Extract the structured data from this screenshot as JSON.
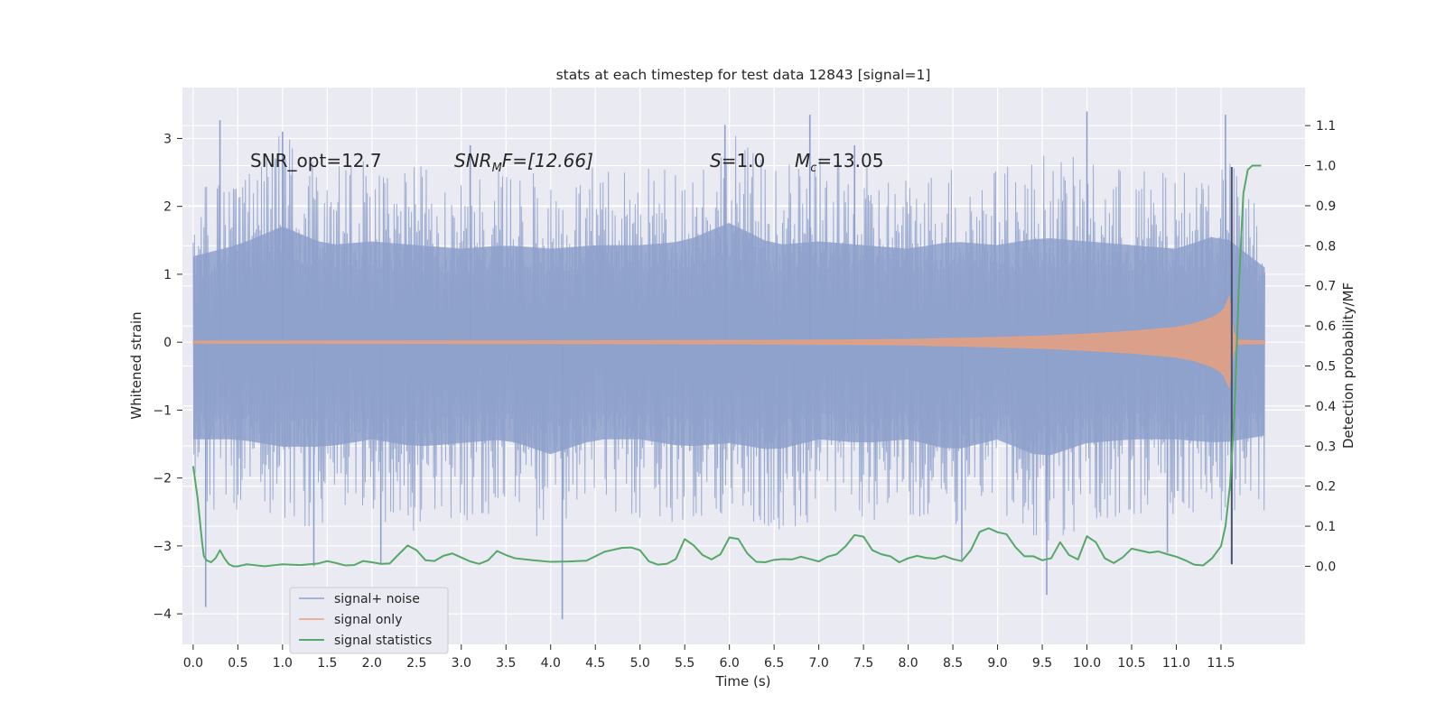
{
  "chart_data": {
    "type": "line",
    "title": "stats at each timestep for test data 12843 [signal=1]",
    "xlabel": "Time (s)",
    "ylabel": "Whitened strain",
    "ylabel_right": "Detection probability/MF",
    "xlim": [
      -0.12,
      12.44
    ],
    "ylim": [
      -4.45,
      3.75
    ],
    "ylim_right": [
      -0.195,
      1.195
    ],
    "xticks": [
      0.0,
      0.5,
      1.0,
      1.5,
      2.0,
      2.5,
      3.0,
      3.5,
      4.0,
      4.5,
      5.0,
      5.5,
      6.0,
      6.5,
      7.0,
      7.5,
      8.0,
      8.5,
      9.0,
      9.5,
      10.0,
      10.5,
      11.0,
      11.5
    ],
    "xtick_labels": [
      "0.0",
      "0.5",
      "1.0",
      "1.5",
      "2.0",
      "2.5",
      "3.0",
      "3.5",
      "4.0",
      "4.5",
      "5.0",
      "5.5",
      "6.0",
      "6.5",
      "7.0",
      "7.5",
      "8.0",
      "8.5",
      "9.0",
      "9.5",
      "10.0",
      "10.5",
      "11.0",
      "11.5"
    ],
    "yticks": [
      -4,
      -3,
      -2,
      -1,
      0,
      1,
      2,
      3
    ],
    "ytick_labels": [
      "−4",
      "−3",
      "−2",
      "−1",
      "0",
      "1",
      "2",
      "3"
    ],
    "yticks_right": [
      0.0,
      0.1,
      0.2,
      0.3,
      0.4,
      0.5,
      0.6,
      0.7,
      0.8,
      0.9,
      1.0,
      1.1
    ],
    "ytick_labels_right": [
      "0.0",
      "0.1",
      "0.2",
      "0.3",
      "0.4",
      "0.5",
      "0.6",
      "0.7",
      "0.8",
      "0.9",
      "1.0",
      "1.1"
    ],
    "grid": true,
    "legend_position": "lower-left",
    "series": [
      {
        "name": "signal+ noise",
        "color": "#8da0cb",
        "axis": "left",
        "envelope": {
          "x": [
            0.0,
            0.5,
            1.0,
            1.5,
            2.0,
            2.5,
            3.0,
            3.5,
            4.0,
            4.5,
            5.0,
            5.5,
            6.0,
            6.5,
            7.0,
            7.5,
            8.0,
            8.5,
            9.0,
            9.5,
            10.0,
            10.5,
            11.0,
            11.5,
            11.99
          ],
          "upper": [
            2.3,
            2.6,
            3.1,
            2.6,
            2.7,
            2.6,
            2.5,
            2.6,
            2.5,
            2.6,
            2.6,
            2.7,
            3.2,
            2.6,
            2.7,
            2.6,
            2.5,
            2.7,
            2.6,
            2.8,
            2.7,
            2.6,
            2.5,
            2.9,
            2.0
          ],
          "lower": [
            -2.6,
            -2.6,
            -2.8,
            -2.8,
            -2.6,
            -2.8,
            -2.7,
            -2.6,
            -3.0,
            -2.6,
            -2.6,
            -2.8,
            -2.7,
            -2.9,
            -2.6,
            -2.7,
            -2.6,
            -2.9,
            -2.6,
            -3.1,
            -2.7,
            -2.6,
            -2.6,
            -2.7,
            -2.5
          ]
        },
        "spikes": [
          {
            "x": 0.3,
            "y": 3.27
          },
          {
            "x": 0.14,
            "y": -3.9
          },
          {
            "x": 1.0,
            "y": 3.1
          },
          {
            "x": 1.35,
            "y": -3.3
          },
          {
            "x": 2.1,
            "y": -3.25
          },
          {
            "x": 4.13,
            "y": -4.08
          },
          {
            "x": 5.95,
            "y": 3.2
          },
          {
            "x": 6.9,
            "y": 3.35
          },
          {
            "x": 8.6,
            "y": -3.2
          },
          {
            "x": 9.55,
            "y": -3.72
          },
          {
            "x": 10.0,
            "y": 3.4
          },
          {
            "x": 11.55,
            "y": 3.35
          },
          {
            "x": 3.1,
            "y": 2.9
          },
          {
            "x": 7.4,
            "y": 2.9
          },
          {
            "x": 10.9,
            "y": -3.1
          }
        ]
      },
      {
        "name": "signal only",
        "color": "#e8a07e",
        "axis": "left",
        "envelope": {
          "x": [
            0.0,
            4.0,
            6.0,
            7.0,
            8.0,
            8.5,
            9.0,
            9.5,
            10.0,
            10.5,
            11.0,
            11.2,
            11.4,
            11.5,
            11.55,
            11.6,
            11.62,
            11.65,
            11.99
          ],
          "amplitude": [
            0.015,
            0.02,
            0.025,
            0.03,
            0.04,
            0.055,
            0.07,
            0.09,
            0.12,
            0.16,
            0.22,
            0.27,
            0.36,
            0.44,
            0.52,
            0.7,
            0.4,
            0.03,
            0.02
          ]
        }
      },
      {
        "name": "signal statistics",
        "color": "#55a868",
        "axis": "right",
        "x": [
          0.0,
          0.05,
          0.1,
          0.12,
          0.15,
          0.2,
          0.25,
          0.3,
          0.35,
          0.4,
          0.45,
          0.5,
          0.6,
          0.8,
          1.0,
          1.2,
          1.4,
          1.5,
          1.6,
          1.7,
          1.8,
          1.9,
          2.0,
          2.1,
          2.2,
          2.3,
          2.4,
          2.5,
          2.6,
          2.7,
          2.8,
          2.9,
          3.0,
          3.1,
          3.2,
          3.3,
          3.4,
          3.5,
          3.6,
          3.8,
          4.0,
          4.2,
          4.4,
          4.6,
          4.8,
          4.9,
          5.0,
          5.1,
          5.2,
          5.3,
          5.4,
          5.5,
          5.6,
          5.7,
          5.8,
          5.9,
          6.0,
          6.1,
          6.2,
          6.3,
          6.4,
          6.5,
          6.6,
          6.7,
          6.8,
          6.9,
          7.0,
          7.1,
          7.2,
          7.3,
          7.4,
          7.5,
          7.6,
          7.7,
          7.8,
          7.9,
          8.0,
          8.1,
          8.2,
          8.3,
          8.4,
          8.5,
          8.6,
          8.7,
          8.8,
          8.9,
          9.0,
          9.1,
          9.2,
          9.3,
          9.4,
          9.5,
          9.6,
          9.7,
          9.8,
          9.9,
          10.0,
          10.1,
          10.2,
          10.3,
          10.4,
          10.5,
          10.6,
          10.7,
          10.8,
          10.9,
          11.0,
          11.1,
          11.2,
          11.3,
          11.4,
          11.5,
          11.55,
          11.6,
          11.65,
          11.7,
          11.75,
          11.8,
          11.85,
          11.9,
          11.95
        ],
        "values": [
          0.25,
          0.17,
          0.06,
          0.025,
          0.015,
          0.01,
          0.02,
          0.04,
          0.02,
          0.005,
          0.0,
          0.0,
          0.005,
          0.0,
          0.005,
          0.003,
          0.007,
          0.013,
          0.008,
          0.002,
          0.003,
          0.013,
          0.01,
          0.006,
          0.007,
          0.03,
          0.052,
          0.04,
          0.015,
          0.013,
          0.026,
          0.032,
          0.022,
          0.012,
          0.006,
          0.015,
          0.038,
          0.028,
          0.02,
          0.015,
          0.011,
          0.012,
          0.014,
          0.036,
          0.046,
          0.047,
          0.04,
          0.012,
          0.004,
          0.006,
          0.018,
          0.068,
          0.052,
          0.028,
          0.017,
          0.03,
          0.072,
          0.068,
          0.032,
          0.011,
          0.01,
          0.016,
          0.018,
          0.017,
          0.024,
          0.018,
          0.012,
          0.024,
          0.03,
          0.05,
          0.078,
          0.074,
          0.04,
          0.03,
          0.025,
          0.01,
          0.02,
          0.026,
          0.021,
          0.019,
          0.026,
          0.018,
          0.013,
          0.04,
          0.086,
          0.095,
          0.085,
          0.08,
          0.048,
          0.025,
          0.025,
          0.015,
          0.02,
          0.06,
          0.028,
          0.017,
          0.075,
          0.06,
          0.02,
          0.008,
          0.022,
          0.044,
          0.039,
          0.034,
          0.037,
          0.03,
          0.024,
          0.015,
          0.004,
          0.002,
          0.02,
          0.05,
          0.1,
          0.2,
          0.38,
          0.7,
          0.93,
          0.99,
          1.0,
          1.0,
          1.0
        ]
      }
    ],
    "vertical_marker": {
      "x": 11.62,
      "y_range": [
        -3.27,
        2.58
      ],
      "color": "#4a5070"
    },
    "annotations": [
      {
        "text": "SNR_opt=12.7",
        "x": 0.2,
        "y": 2.6
      },
      {
        "text_main": "SNR",
        "text_sub": "M",
        "text_rest": "F=[12.66]",
        "x": 2.6,
        "y": 2.6
      },
      {
        "text_main": "S",
        "text_rest": "=1.0",
        "x": 5.6,
        "y": 2.6
      },
      {
        "text_main": "M",
        "text_sub": "c",
        "text_rest": "=13.05",
        "x": 6.6,
        "y": 2.6
      }
    ]
  }
}
